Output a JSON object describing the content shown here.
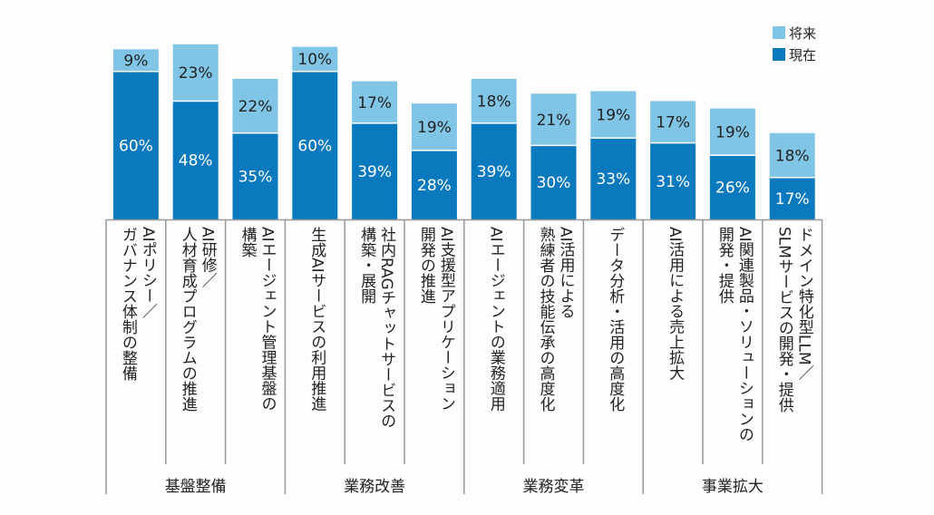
{
  "chart_data": {
    "type": "bar",
    "stacked": true,
    "ylim": [
      0,
      100
    ],
    "grid": false,
    "legend_placement": "top-right",
    "categories": [
      [
        "AIポリシー／",
        "ガバナンス体制の整備"
      ],
      [
        "AI研修／",
        "人材育成プログラムの推進"
      ],
      [
        "AIエージェント管理基盤の",
        "構築"
      ],
      [
        "生成AIサービスの利用推進"
      ],
      [
        "社内RAGチャットサービスの",
        "構築・展開"
      ],
      [
        "AI支援型アプリケーション",
        "開発の推進"
      ],
      [
        "AIエージェントの業務適用"
      ],
      [
        "AI活用による",
        "熟練者の技能伝承の高度化"
      ],
      [
        "データ分析・活用の高度化"
      ],
      [
        "AI活用による売上拡大"
      ],
      [
        "AI関連製品・ソリューションの",
        "開発・提供"
      ],
      [
        "ドメイン特化型LLM／",
        "SLMサービスの開発・提供"
      ]
    ],
    "groups": [
      {
        "label": "基盤整備",
        "count": 3
      },
      {
        "label": "業務改善",
        "count": 3
      },
      {
        "label": "業務変革",
        "count": 3
      },
      {
        "label": "事業拡大",
        "count": 3
      }
    ],
    "series": [
      {
        "name": "現在",
        "color": "#0a79bd",
        "values": [
          60,
          48,
          35,
          60,
          39,
          28,
          39,
          30,
          33,
          31,
          26,
          17
        ]
      },
      {
        "name": "将来",
        "color": "#80c4e6",
        "values": [
          9,
          23,
          22,
          10,
          17,
          19,
          18,
          21,
          19,
          17,
          19,
          18
        ]
      }
    ],
    "value_suffix": "%"
  }
}
